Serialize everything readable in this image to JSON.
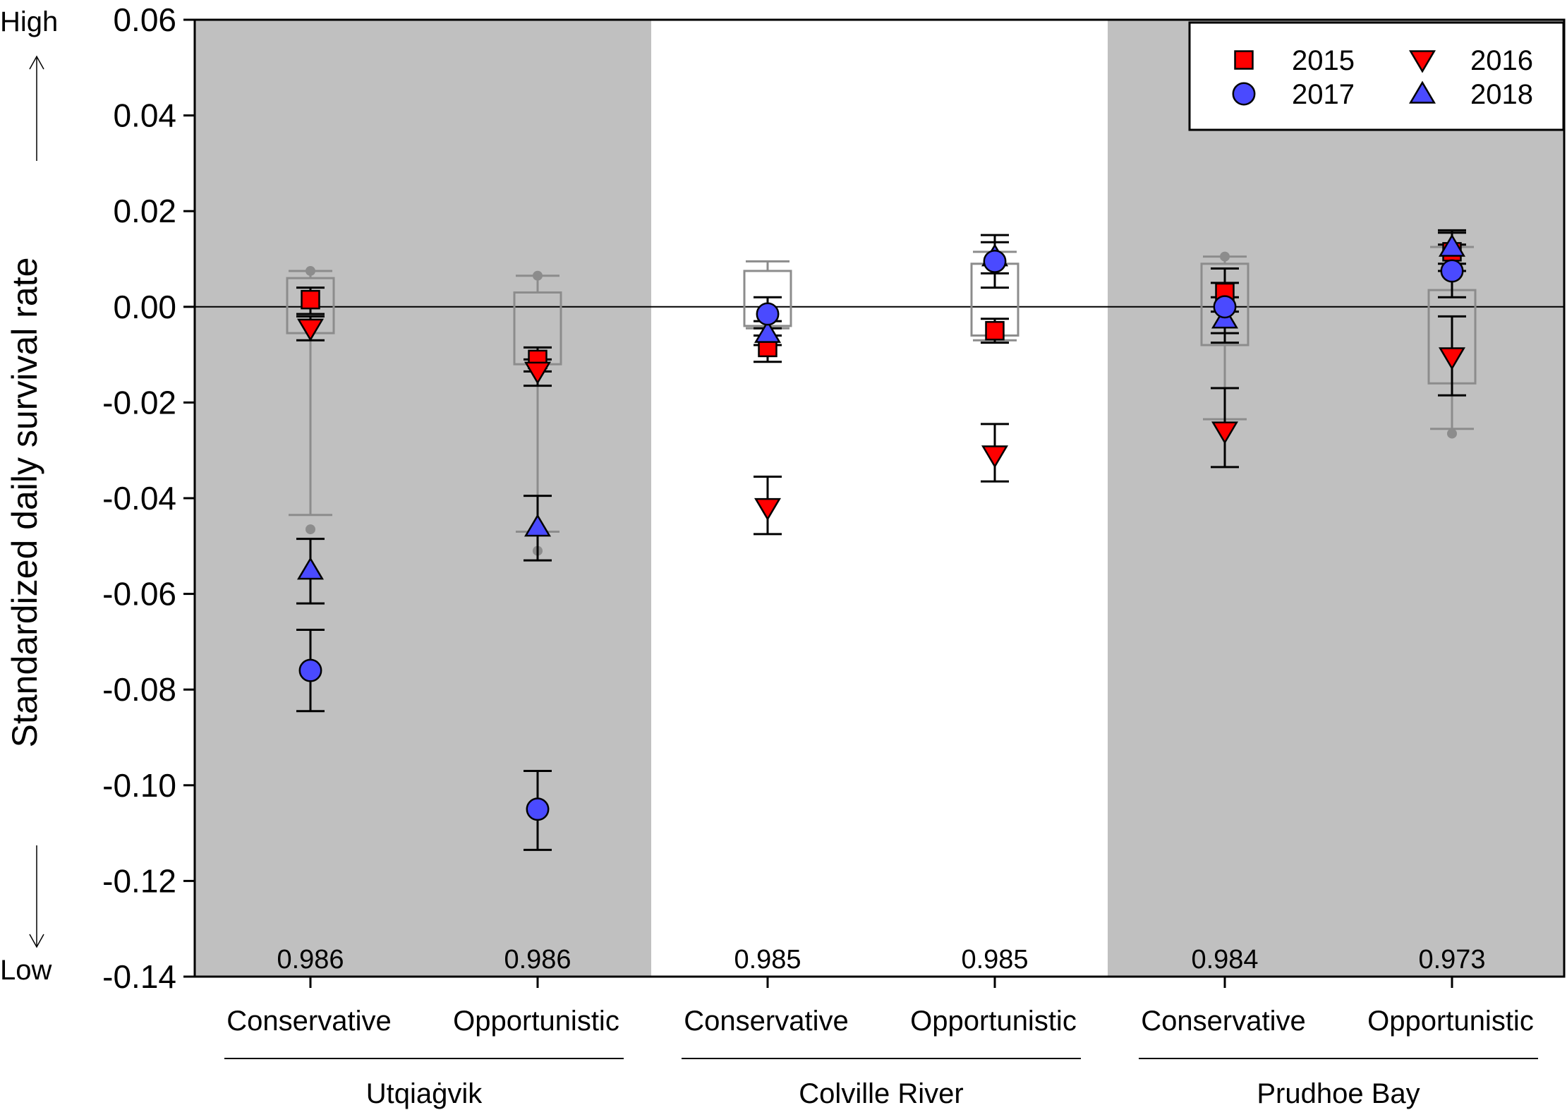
{
  "chart_data": {
    "type": "scatter",
    "ylabel": "Standardized daily survival rate",
    "y_high_label": "High",
    "y_low_label": "Low",
    "ylim": [
      -0.14,
      0.06
    ],
    "yticks": [
      0.06,
      0.04,
      0.02,
      0.0,
      -0.02,
      -0.04,
      -0.06,
      -0.08,
      -0.1,
      -0.12,
      -0.14
    ],
    "ytick_labels": [
      "0.06",
      "0.04",
      "0.02",
      "0.00",
      "-0.02",
      "-0.04",
      "-0.06",
      "-0.08",
      "-0.10",
      "-0.12",
      "-0.14"
    ],
    "reference_line": 0.0,
    "legend": {
      "position": "top-right",
      "entries": [
        {
          "year": "2015",
          "marker": "square",
          "color": "#ff0000"
        },
        {
          "year": "2016",
          "marker": "triangle-down",
          "color": "#ff0000"
        },
        {
          "year": "2017",
          "marker": "circle",
          "color": "#4a4aff"
        },
        {
          "year": "2018",
          "marker": "triangle-up",
          "color": "#4a4aff"
        }
      ]
    },
    "sites": [
      {
        "name": "Utqiaġvik",
        "shaded": true
      },
      {
        "name": "Colville River",
        "shaded": false
      },
      {
        "name": "Prudhoe Bay",
        "shaded": true
      }
    ],
    "groups": [
      {
        "site": "Utqiaġvik",
        "strategy": "Conservative",
        "baseline": "0.986",
        "box": {
          "q1": -0.0055,
          "q3": 0.006,
          "whisker_low": -0.0435,
          "whisker_high": 0.0075,
          "outliers": [
            0.0075,
            -0.0465
          ]
        },
        "points": [
          {
            "year": "2015",
            "value": 0.0015,
            "lower": -0.0015,
            "upper": 0.004
          },
          {
            "year": "2016",
            "value": -0.0045,
            "lower": -0.007,
            "upper": -0.002
          },
          {
            "year": "2017",
            "value": -0.076,
            "lower": -0.0845,
            "upper": -0.0675
          },
          {
            "year": "2018",
            "value": -0.055,
            "lower": -0.062,
            "upper": -0.0485
          }
        ]
      },
      {
        "site": "Utqiaġvik",
        "strategy": "Opportunistic",
        "baseline": "0.986",
        "box": {
          "q1": -0.012,
          "q3": 0.003,
          "whisker_low": -0.047,
          "whisker_high": 0.0065,
          "outliers": [
            0.0065,
            -0.051
          ]
        },
        "points": [
          {
            "year": "2015",
            "value": -0.011,
            "lower": -0.0135,
            "upper": -0.0085
          },
          {
            "year": "2016",
            "value": -0.0135,
            "lower": -0.0165,
            "upper": -0.011
          },
          {
            "year": "2017",
            "value": -0.105,
            "lower": -0.1135,
            "upper": -0.097
          },
          {
            "year": "2018",
            "value": -0.046,
            "lower": -0.053,
            "upper": -0.0395
          }
        ]
      },
      {
        "site": "Colville River",
        "strategy": "Conservative",
        "baseline": "0.985",
        "box": {
          "q1": -0.004,
          "q3": 0.0075,
          "whisker_low": -0.0045,
          "whisker_high": 0.0095,
          "outliers": []
        },
        "points": [
          {
            "year": "2015",
            "value": -0.0085,
            "lower": -0.0115,
            "upper": -0.006
          },
          {
            "year": "2016",
            "value": -0.042,
            "lower": -0.0475,
            "upper": -0.0355
          },
          {
            "year": "2017",
            "value": -0.0015,
            "lower": -0.0045,
            "upper": 0.002
          },
          {
            "year": "2018",
            "value": -0.0055,
            "lower": -0.008,
            "upper": -0.003
          }
        ]
      },
      {
        "site": "Colville River",
        "strategy": "Opportunistic",
        "baseline": "0.985",
        "box": {
          "q1": -0.006,
          "q3": 0.009,
          "whisker_low": -0.007,
          "whisker_high": 0.0115,
          "outliers": []
        },
        "points": [
          {
            "year": "2015",
            "value": -0.005,
            "lower": -0.0075,
            "upper": -0.0025
          },
          {
            "year": "2016",
            "value": -0.031,
            "lower": -0.0365,
            "upper": -0.0245
          },
          {
            "year": "2017",
            "value": 0.0095,
            "lower": 0.004,
            "upper": 0.015
          },
          {
            "year": "2018",
            "value": 0.0105,
            "lower": 0.007,
            "upper": 0.0135
          }
        ]
      },
      {
        "site": "Prudhoe Bay",
        "strategy": "Conservative",
        "baseline": "0.984",
        "box": {
          "q1": -0.008,
          "q3": 0.009,
          "whisker_low": -0.0235,
          "whisker_high": 0.0105,
          "outliers": [
            0.0105
          ]
        },
        "points": [
          {
            "year": "2015",
            "value": 0.003,
            "lower": -0.001,
            "upper": 0.008
          },
          {
            "year": "2016",
            "value": -0.026,
            "lower": -0.0335,
            "upper": -0.017
          },
          {
            "year": "2017",
            "value": 0.0,
            "lower": -0.0055,
            "upper": 0.005
          },
          {
            "year": "2018",
            "value": -0.0025,
            "lower": -0.0075,
            "upper": 0.002
          }
        ]
      },
      {
        "site": "Prudhoe Bay",
        "strategy": "Opportunistic",
        "baseline": "0.973",
        "box": {
          "q1": -0.016,
          "q3": 0.0035,
          "whisker_low": -0.0255,
          "whisker_high": 0.0125,
          "outliers": [
            -0.0265
          ]
        },
        "points": [
          {
            "year": "2015",
            "value": 0.0115,
            "lower": 0.0075,
            "upper": 0.016
          },
          {
            "year": "2016",
            "value": -0.0105,
            "lower": -0.0185,
            "upper": -0.002
          },
          {
            "year": "2017",
            "value": 0.0075,
            "lower": 0.002,
            "upper": 0.013
          },
          {
            "year": "2018",
            "value": 0.0125,
            "lower": 0.009,
            "upper": 0.0155
          }
        ]
      }
    ]
  }
}
